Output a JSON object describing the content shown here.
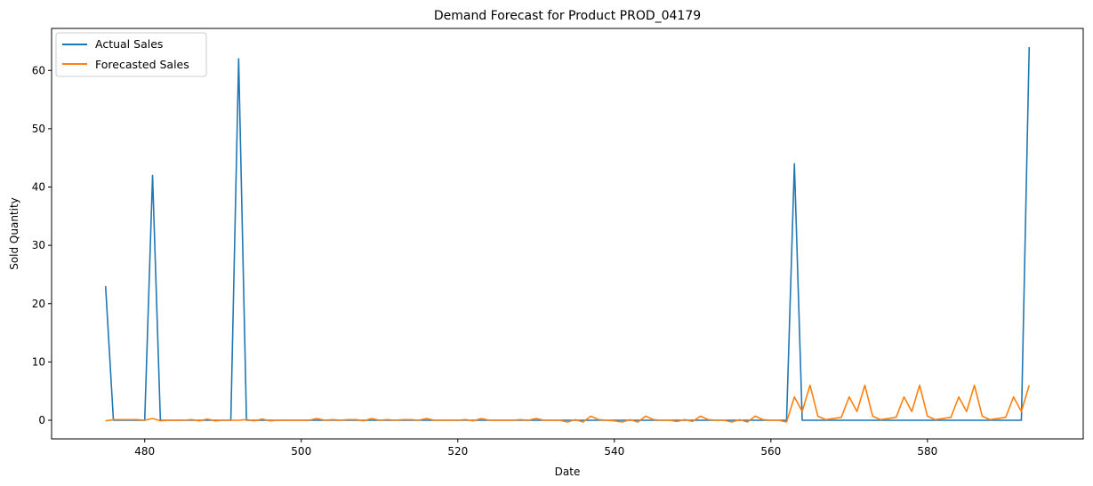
{
  "chart_data": {
    "type": "line",
    "title": "Demand Forecast for Product PROD_04179",
    "xlabel": "Date",
    "ylabel": "Sold Quantity",
    "xlim": [
      468.1,
      599.9
    ],
    "ylim": [
      -3.2,
      67.2
    ],
    "x_ticks": [
      480,
      500,
      520,
      540,
      560,
      580
    ],
    "y_ticks": [
      0,
      10,
      20,
      30,
      40,
      50,
      60
    ],
    "grid": false,
    "legend_position": "upper left",
    "x": [
      475,
      476,
      477,
      478,
      479,
      480,
      481,
      482,
      483,
      484,
      485,
      486,
      487,
      488,
      489,
      490,
      491,
      492,
      493,
      494,
      495,
      496,
      497,
      498,
      499,
      500,
      501,
      502,
      503,
      504,
      505,
      506,
      507,
      508,
      509,
      510,
      511,
      512,
      513,
      514,
      515,
      516,
      517,
      518,
      519,
      520,
      521,
      522,
      523,
      524,
      525,
      526,
      527,
      528,
      529,
      530,
      531,
      532,
      533,
      534,
      535,
      536,
      537,
      538,
      539,
      540,
      541,
      542,
      543,
      544,
      545,
      546,
      547,
      548,
      549,
      550,
      551,
      552,
      553,
      554,
      555,
      556,
      557,
      558,
      559,
      560,
      561,
      562,
      563,
      564,
      565,
      566,
      567,
      568,
      569,
      570,
      571,
      572,
      573,
      574,
      575,
      576,
      577,
      578,
      579,
      580,
      581,
      582,
      583,
      584,
      585,
      586,
      587,
      588,
      589,
      590,
      591,
      592,
      593
    ],
    "series": [
      {
        "name": "Actual Sales",
        "color": "#1f77b4",
        "values": [
          23,
          0,
          0,
          0,
          0,
          0,
          42,
          0,
          0,
          0,
          0,
          0,
          0,
          0,
          0,
          0,
          0,
          62,
          0,
          0,
          0,
          0,
          0,
          0,
          0,
          0,
          0,
          0,
          0,
          0,
          0,
          0,
          0,
          0,
          0,
          0,
          0,
          0,
          0,
          0,
          0,
          0,
          0,
          0,
          0,
          0,
          0,
          0,
          0,
          0,
          0,
          0,
          0,
          0,
          0,
          0,
          0,
          0,
          0,
          0,
          0,
          0,
          0,
          0,
          0,
          0,
          0,
          0,
          0,
          0,
          0,
          0,
          0,
          0,
          0,
          0,
          0,
          0,
          0,
          0,
          0,
          0,
          0,
          0,
          0,
          0,
          0,
          0,
          44,
          0,
          0,
          0,
          0,
          0,
          0,
          0,
          0,
          0,
          0,
          0,
          0,
          0,
          0,
          0,
          0,
          0,
          0,
          0,
          0,
          0,
          0,
          0,
          0,
          0,
          0,
          0,
          0,
          0,
          64
        ]
      },
      {
        "name": "Forecasted Sales",
        "color": "#ff7f0e",
        "values": [
          -0.1,
          0.1,
          0.1,
          0.1,
          0.1,
          0,
          0.3,
          -0.1,
          0,
          0,
          0,
          0.1,
          -0.1,
          0.2,
          -0.1,
          0,
          0,
          0,
          0.1,
          -0.1,
          0.2,
          -0.1,
          0,
          0,
          0,
          0,
          0,
          0.3,
          0,
          0.1,
          0,
          0.1,
          0.1,
          -0.1,
          0.3,
          0,
          0.1,
          0,
          0.1,
          0.1,
          0,
          0.3,
          0,
          0,
          0,
          0,
          0.1,
          -0.1,
          0.3,
          0,
          0,
          0,
          0,
          0.1,
          0,
          0.3,
          0,
          0,
          0,
          -0.3,
          0.1,
          -0.3,
          0.7,
          0.1,
          0,
          -0.1,
          -0.3,
          0.1,
          -0.3,
          0.7,
          0.1,
          0,
          0,
          -0.2,
          0.1,
          -0.2,
          0.7,
          0.1,
          0,
          0,
          -0.3,
          0.1,
          -0.3,
          0.7,
          0.1,
          0,
          0,
          -0.3,
          4,
          1.5,
          6,
          0.7,
          0.1,
          0.3,
          0.5,
          4,
          1.5,
          6,
          0.7,
          0.1,
          0.3,
          0.5,
          4,
          1.5,
          6,
          0.7,
          0.1,
          0.3,
          0.5,
          4,
          1.5,
          6,
          0.7,
          0.1,
          0.3,
          0.5,
          4,
          1.5,
          6
        ]
      }
    ]
  }
}
